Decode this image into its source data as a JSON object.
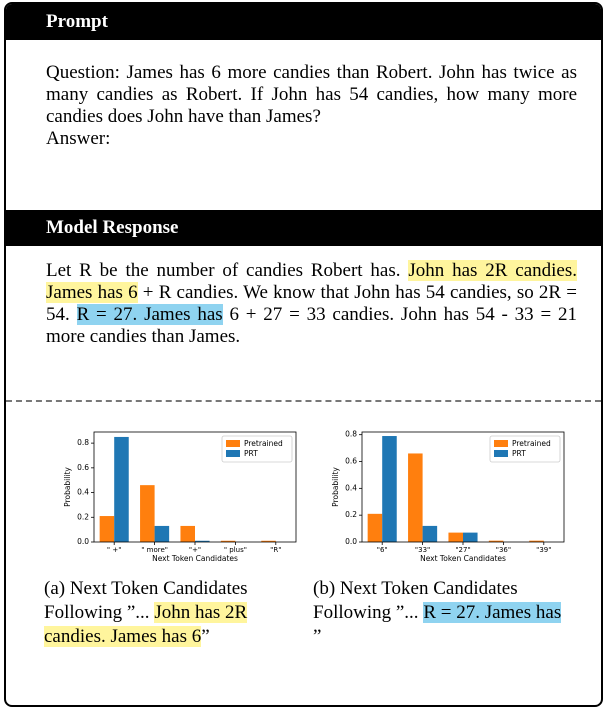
{
  "prompt": {
    "header": "Prompt",
    "question": "Question: James has 6 more candies than Robert. John has twice as many candies as Robert. If John has 54 candies, how many more candies does John have than James?",
    "answer": "Answer:"
  },
  "response": {
    "header": "Model Response",
    "segments": [
      {
        "text": "Let R be the number of candies Robert has. "
      },
      {
        "text": "John has 2R candies.",
        "highlight": "#fff59d"
      },
      {
        "text": " "
      },
      {
        "text": "James has 6",
        "highlight": "#fff59d"
      },
      {
        "text": " + R candies. We know that John has 54 candies, so 2R = 54. "
      },
      {
        "text": "R = 27. James has",
        "highlight": "#8fd3f0"
      },
      {
        "text": " 6 + 27 = 33 candies. John has 54 - 33 = 21 more candies than James."
      }
    ]
  },
  "captions": [
    [
      {
        "text": "(a) Next Token Candidates Following ”... "
      },
      {
        "text": "John has 2R candies. James has 6",
        "highlight": "#fff59d"
      },
      {
        "text": "”"
      }
    ],
    [
      {
        "text": "(b) Next Token Candidates Following ”... "
      },
      {
        "text": "R = 27. James has ",
        "highlight": "#8fd3f0"
      },
      {
        "text": "”"
      }
    ]
  ],
  "chart_data": [
    {
      "type": "bar",
      "xlabel": "Next Token Candidates",
      "ylabel": "Probability",
      "categories": [
        "\" +\"",
        "\" more\"",
        "\"+\"",
        "\" plus\"",
        "\"R\""
      ],
      "series": [
        {
          "name": "Pretrained",
          "color": "#ff7f0e",
          "values": [
            0.21,
            0.46,
            0.13,
            0.01,
            0.01
          ]
        },
        {
          "name": "PRT",
          "color": "#1f77b4",
          "values": [
            0.85,
            0.13,
            0.01,
            0.0,
            0.0
          ]
        }
      ],
      "ylim": [
        0,
        0.89
      ],
      "yticks": [
        {
          "value": 0,
          "label": "0.0"
        },
        0.2,
        0.4,
        0.6,
        0.8
      ],
      "legend": "upper right"
    },
    {
      "type": "bar",
      "xlabel": "Next Token Candidates",
      "ylabel": "Probability",
      "categories": [
        "\"6\"",
        "\"33\"",
        "\"27\"",
        "\"36\"",
        "\"39\""
      ],
      "series": [
        {
          "name": "Pretrained",
          "color": "#ff7f0e",
          "values": [
            0.21,
            0.66,
            0.07,
            0.01,
            0.01
          ]
        },
        {
          "name": "PRT",
          "color": "#1f77b4",
          "values": [
            0.79,
            0.12,
            0.07,
            0.0,
            0.0
          ]
        }
      ],
      "ylim": [
        0,
        0.82
      ],
      "yticks": [
        {
          "value": 0,
          "label": "0.0"
        },
        0.2,
        0.4,
        0.6,
        0.8
      ],
      "legend": "upper right"
    }
  ]
}
